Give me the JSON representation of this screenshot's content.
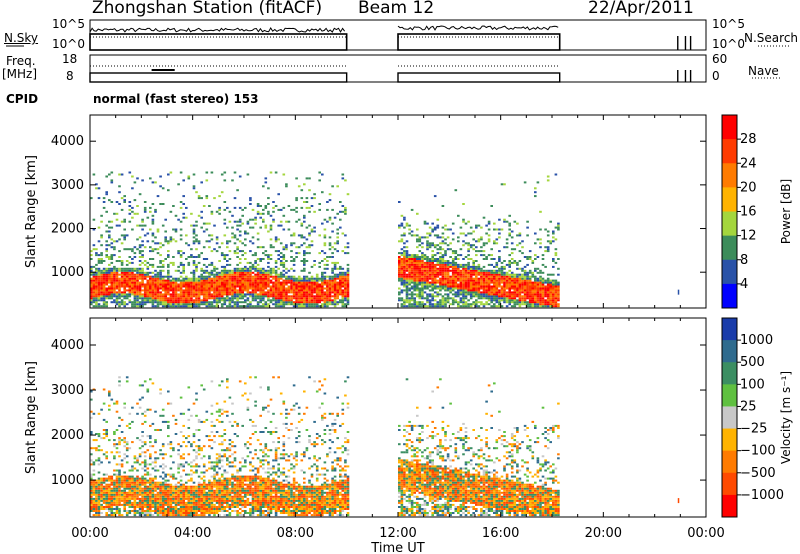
{
  "header": {
    "station": "Zhongshan Station (fitACF)",
    "beam": "Beam 12",
    "date": "22/Apr/2011"
  },
  "strips": {
    "nsky_label": "N.Sky",
    "nsky_ticks": [
      "10^5",
      "10^0"
    ],
    "nsearch_label": "N.Search",
    "nsearch_ticks": [
      "10^5",
      "10^0"
    ],
    "freq_label": "Freq.",
    "freq_unit": "[MHz]",
    "freq_ticks": [
      "18",
      "8"
    ],
    "nave_label": "Nave",
    "nave_ticks": [
      "60",
      "0"
    ],
    "cpid_label": "CPID",
    "cpid_text": "normal (fast stereo) 153"
  },
  "chart_data": [
    {
      "type": "heatmap",
      "name": "power",
      "xlabel": "Time UT",
      "ylabel": "Slant Range [km]",
      "xlim": [
        0,
        24
      ],
      "ylim": [
        180,
        4600
      ],
      "y_ticks": [
        1000,
        2000,
        3000,
        4000
      ],
      "colorbar": {
        "label": "Power [dB]",
        "ticks": [
          "28",
          "24",
          "20",
          "16",
          "12",
          "8",
          "4"
        ],
        "colors": [
          "#ff0000",
          "#ff3b00",
          "#ff7b00",
          "#ffb300",
          "#a4d63d",
          "#3c8c5a",
          "#2952a8",
          "#0000ff"
        ]
      },
      "data_periods_ut": [
        [
          0.0,
          10.0
        ],
        [
          12.0,
          18.3
        ]
      ]
    },
    {
      "type": "heatmap",
      "name": "velocity",
      "xlabel": "Time UT",
      "ylabel": "Slant Range [km]",
      "xlim": [
        0,
        24
      ],
      "ylim": [
        180,
        4600
      ],
      "y_ticks": [
        1000,
        2000,
        3000,
        4000
      ],
      "colorbar": {
        "label": "Velocity [m s⁻¹]",
        "ticks": [
          "1000",
          "500",
          "100",
          "25",
          "−25",
          "−100",
          "−500",
          "−1000"
        ],
        "colors": [
          "#1a3caa",
          "#2f6b8e",
          "#3b8e62",
          "#5fc040",
          "#c8c8c8",
          "#ffb300",
          "#ff7b00",
          "#ff4a00",
          "#ff0000"
        ]
      },
      "data_periods_ut": [
        [
          0.0,
          10.0
        ],
        [
          12.0,
          18.3
        ]
      ]
    }
  ],
  "time_axis": {
    "ticks": [
      "00:00",
      "04:00",
      "08:00",
      "12:00",
      "16:00",
      "20:00",
      "00:00"
    ],
    "label": "Time UT"
  }
}
